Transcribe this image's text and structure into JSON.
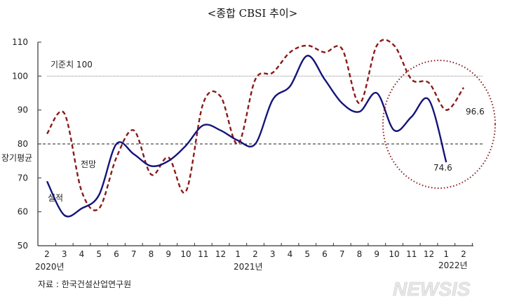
{
  "chart_data": {
    "type": "line",
    "title": "<종합 CBSI 추이>",
    "x": [
      "2",
      "3",
      "4",
      "5",
      "6",
      "7",
      "8",
      "9",
      "10",
      "11",
      "12",
      "1",
      "2",
      "3",
      "4",
      "5",
      "6",
      "7",
      "8",
      "9",
      "10",
      "11",
      "12",
      "1",
      "2"
    ],
    "year_labels": [
      "2020년",
      "2021년",
      "2022년"
    ],
    "ylim": [
      50,
      110
    ],
    "yticks": [
      50,
      60,
      70,
      80,
      90,
      100,
      110
    ],
    "series": [
      {
        "name": "실적",
        "color": "#14147a",
        "values": [
          69,
          59,
          61,
          65,
          80,
          77,
          73.5,
          75,
          79.5,
          85.5,
          84,
          81,
          80,
          93,
          97,
          106,
          99,
          92,
          89.5,
          95,
          84,
          88,
          93,
          74.6,
          null
        ]
      },
      {
        "name": "전망",
        "color": "#8b1a1a",
        "values": [
          83,
          89,
          66,
          61,
          76,
          84,
          71,
          76,
          66,
          92,
          94,
          80,
          99,
          101,
          107,
          109,
          107,
          108,
          92,
          109,
          109,
          99,
          98,
          90,
          96.6
        ]
      }
    ],
    "reference_lines": [
      {
        "label": "기준치 100",
        "value": 100
      },
      {
        "label": "장기평균",
        "value": 80
      }
    ],
    "annotations": [
      "74.6",
      "96.6"
    ],
    "source": "자료 : 한국건설산업연구원",
    "watermark": "NEWSIS"
  }
}
